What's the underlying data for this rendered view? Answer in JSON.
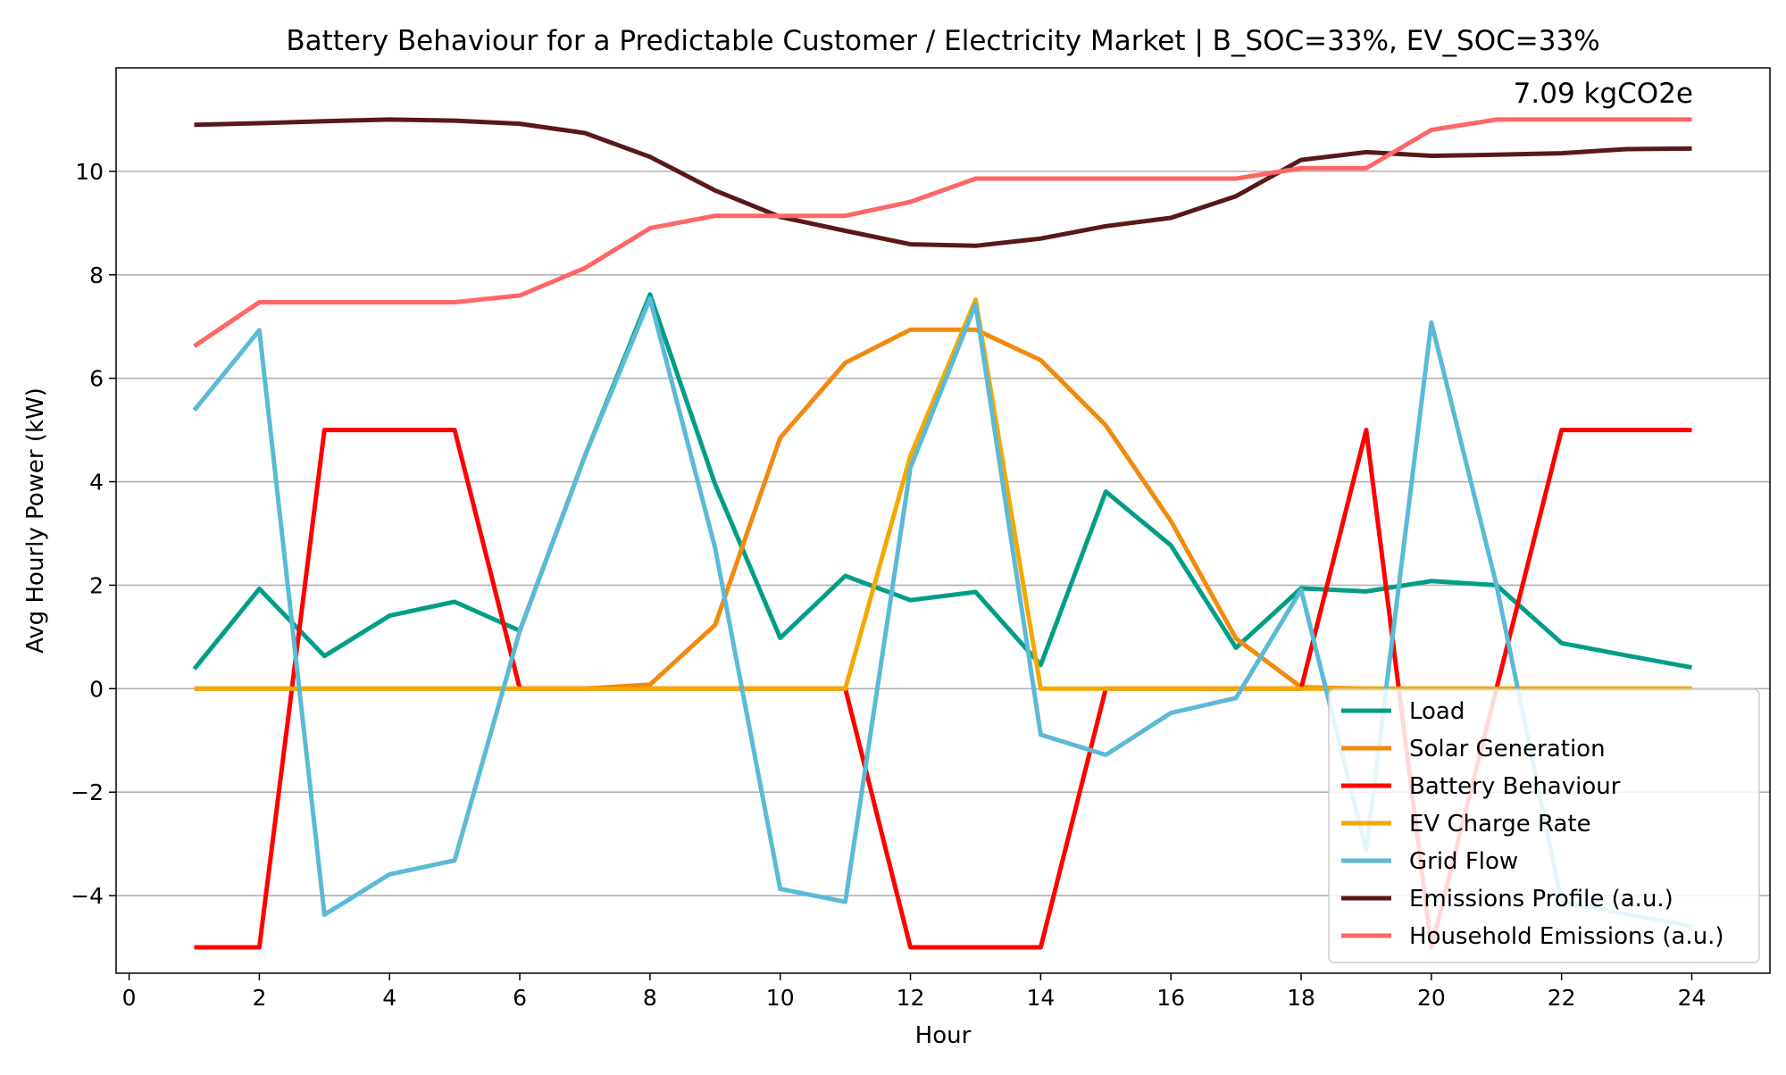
{
  "chart_data": {
    "type": "line",
    "title": "Battery Behaviour for a Predictable Customer / Electricity Market | B_SOC=33%, EV_SOC=33%",
    "xlabel": "Hour",
    "ylabel": "Avg Hourly Power (kW)",
    "xlim": [
      -0.2,
      25.2
    ],
    "ylim": [
      -5.5,
      12.0
    ],
    "xticks": [
      0,
      2,
      4,
      6,
      8,
      10,
      12,
      14,
      16,
      18,
      20,
      22,
      24
    ],
    "yticks": [
      -4,
      -2,
      0,
      2,
      4,
      6,
      8,
      10
    ],
    "grid": "horizontal",
    "legend_position": "lower-right",
    "annotation": "7.09 kgCO2e",
    "x": [
      1,
      2,
      3,
      4,
      5,
      6,
      7,
      8,
      9,
      10,
      11,
      12,
      13,
      14,
      15,
      16,
      17,
      18,
      19,
      20,
      21,
      22,
      23,
      24
    ],
    "series": [
      {
        "name": "Load",
        "color": "#009E86",
        "values": [
          0.38,
          1.93,
          0.63,
          1.41,
          1.68,
          1.12,
          4.5,
          7.62,
          3.95,
          0.98,
          2.18,
          1.71,
          1.87,
          0.46,
          3.81,
          2.77,
          0.79,
          1.94,
          1.88,
          2.08,
          2.0,
          0.88,
          0.64,
          0.41
        ]
      },
      {
        "name": "Solar Generation",
        "color": "#F28A0F",
        "values": [
          0,
          0,
          0,
          0,
          0,
          0,
          0,
          0.08,
          1.23,
          4.85,
          6.3,
          6.94,
          6.94,
          6.35,
          5.09,
          3.24,
          0.97,
          0.03,
          0,
          0,
          0,
          0,
          0,
          0
        ]
      },
      {
        "name": "Battery Behaviour",
        "color": "#FF0000",
        "values": [
          -5,
          -5,
          5,
          5,
          5,
          0,
          0,
          0,
          0,
          0,
          0,
          -5,
          -5,
          -5,
          0,
          0,
          0,
          0,
          5,
          -5,
          0,
          5,
          5,
          5
        ]
      },
      {
        "name": "EV Charge Rate",
        "color": "#F2A900",
        "values": [
          0,
          0,
          0,
          0,
          0,
          0,
          0,
          0,
          0,
          0,
          0,
          4.5,
          7.52,
          0,
          0,
          0,
          0,
          0,
          0,
          0,
          0,
          0,
          0,
          0
        ]
      },
      {
        "name": "Grid Flow",
        "color": "#5BBAD5",
        "values": [
          5.38,
          6.93,
          -4.37,
          -3.59,
          -3.32,
          1.12,
          4.5,
          7.54,
          2.72,
          -3.87,
          -4.12,
          4.27,
          7.43,
          -0.89,
          -1.28,
          -0.47,
          -0.18,
          1.91,
          -3.12,
          7.08,
          2.0,
          -4.12,
          -4.36,
          -4.59
        ]
      },
      {
        "name": "Emissions Profile (a.u.)",
        "color": "#5A1818",
        "values": [
          10.9,
          10.93,
          10.97,
          11.0,
          10.98,
          10.92,
          10.74,
          10.28,
          9.63,
          9.12,
          8.85,
          8.59,
          8.56,
          8.7,
          8.94,
          9.1,
          9.52,
          10.22,
          10.37,
          10.3,
          10.32,
          10.35,
          10.43,
          10.44
        ]
      },
      {
        "name": "Household Emissions (a.u.)",
        "color": "#FF6666",
        "values": [
          6.62,
          7.47,
          7.47,
          7.47,
          7.47,
          7.6,
          8.13,
          8.9,
          9.14,
          9.14,
          9.14,
          9.41,
          9.86,
          9.86,
          9.86,
          9.86,
          9.86,
          10.06,
          10.06,
          10.8,
          11.0,
          11.0,
          11.0,
          11.0
        ]
      }
    ]
  }
}
